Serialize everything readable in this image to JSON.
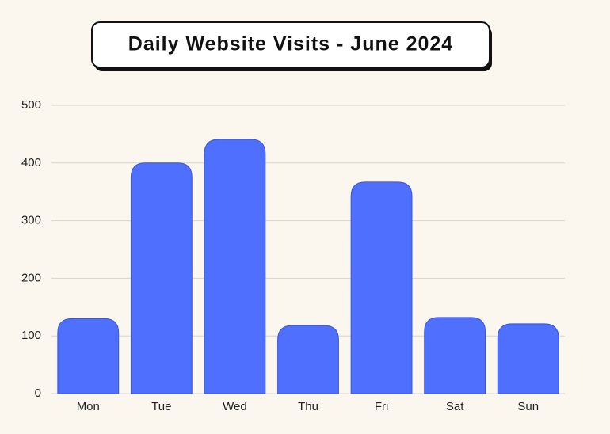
{
  "chart_data": {
    "type": "bar",
    "title": "Daily Website Visits - June 2024",
    "categories": [
      "Mon",
      "Tue",
      "Wed",
      "Thu",
      "Fri",
      "Sat",
      "Sun"
    ],
    "values": [
      130,
      400,
      441,
      118,
      367,
      132,
      121
    ],
    "color": "#4f6fff",
    "ylim": [
      0,
      500
    ],
    "yticks": [
      0,
      100,
      200,
      300,
      400,
      500
    ],
    "grid": true
  }
}
